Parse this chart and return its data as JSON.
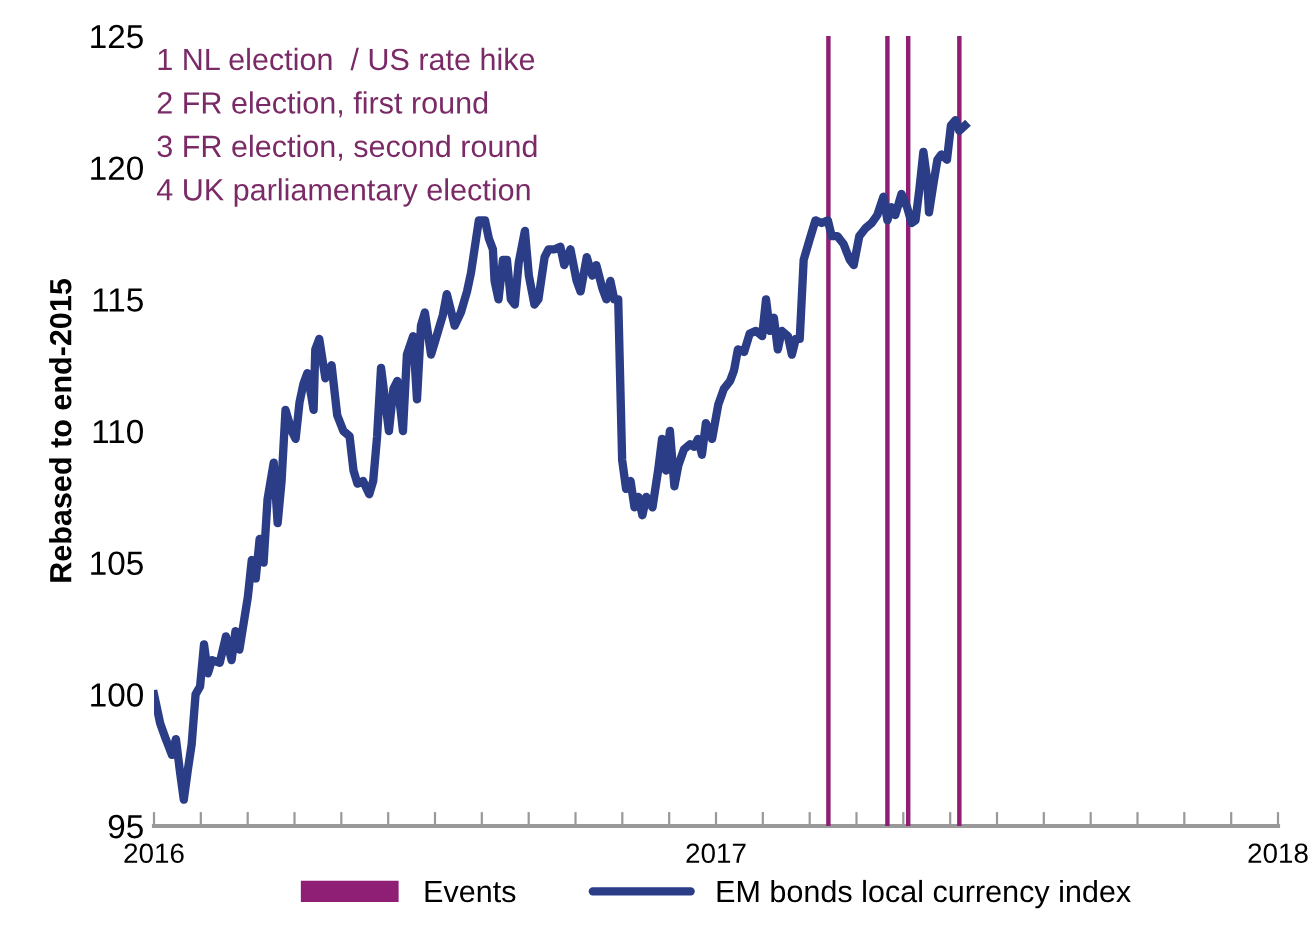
{
  "chart_data": {
    "type": "line",
    "ylabel": "Rebased to end-2015",
    "annotations": [
      "1 NL election  / US rate hike",
      "2 FR election, first round",
      "3 FR election, second round",
      "4 UK parliamentary election"
    ],
    "xlim": [
      2016,
      2018
    ],
    "ylim": [
      95,
      125
    ],
    "yticks": [
      95,
      100,
      105,
      110,
      115,
      120,
      125
    ],
    "xticks": [
      2016,
      {
        "value": 2016.0833,
        "label": null
      },
      {
        "value": 2016.1667,
        "label": null
      },
      {
        "value": 2016.25,
        "label": null
      },
      {
        "value": 2016.3333,
        "label": null
      },
      {
        "value": 2016.4167,
        "label": null
      },
      {
        "value": 2016.5,
        "label": null
      },
      {
        "value": 2016.5833,
        "label": null
      },
      {
        "value": 2016.6667,
        "label": null
      },
      {
        "value": 2016.75,
        "label": null
      },
      {
        "value": 2016.8333,
        "label": null
      },
      {
        "value": 2016.9167,
        "label": null
      },
      2017,
      {
        "value": 2017.0833,
        "label": null
      },
      {
        "value": 2017.1667,
        "label": null
      },
      {
        "value": 2017.25,
        "label": null
      },
      {
        "value": 2017.3333,
        "label": null
      },
      {
        "value": 2017.4167,
        "label": null
      },
      {
        "value": 2017.5,
        "label": null
      },
      {
        "value": 2017.5833,
        "label": null
      },
      {
        "value": 2017.6667,
        "label": null
      },
      {
        "value": 2017.75,
        "label": null
      },
      {
        "value": 2017.8333,
        "label": null
      },
      {
        "value": 2017.9167,
        "label": null
      },
      2018
    ],
    "grid": false,
    "legend": "bottom",
    "marker": "none",
    "line_style": "solid",
    "ref_lines": [
      {
        "axis": "x",
        "value": 2017.2,
        "label": "Events",
        "color": "#8e1f74"
      },
      {
        "axis": "x",
        "value": 2017.305,
        "color": "#8e1f74"
      },
      {
        "axis": "x",
        "value": 2017.342,
        "color": "#8e1f74"
      },
      {
        "axis": "x",
        "value": 2017.433,
        "color": "#8e1f74"
      }
    ],
    "series": [
      {
        "name": "EM bonds local currency index",
        "color": "#2b3d87",
        "x": [
          2016.0,
          2016.011,
          2016.021,
          2016.032,
          2016.039,
          2016.046,
          2016.053,
          2016.06,
          2016.067,
          2016.074,
          2016.082,
          2016.089,
          2016.096,
          2016.103,
          2016.117,
          2016.128,
          2016.138,
          2016.145,
          2016.152,
          2016.167,
          2016.174,
          2016.181,
          2016.188,
          2016.195,
          2016.202,
          2016.213,
          2016.22,
          2016.227,
          2016.234,
          2016.245,
          2016.252,
          2016.259,
          2016.266,
          2016.273,
          2016.284,
          2016.287,
          2016.294,
          2016.305,
          2016.316,
          2016.326,
          2016.337,
          2016.348,
          2016.355,
          2016.362,
          2016.372,
          2016.383,
          2016.39,
          2016.397,
          2016.404,
          2016.418,
          2016.426,
          2016.433,
          2016.443,
          2016.45,
          2016.461,
          2016.468,
          2016.475,
          2016.482,
          2016.493,
          2016.5,
          2016.507,
          2016.514,
          2016.521,
          2016.528,
          2016.535,
          2016.546,
          2016.557,
          2016.564,
          2016.571,
          2016.578,
          2016.589,
          2016.596,
          2016.603,
          2016.606,
          2016.613,
          2016.621,
          2016.628,
          2016.635,
          2016.642,
          2016.649,
          2016.66,
          2016.667,
          2016.677,
          2016.684,
          2016.695,
          2016.702,
          2016.713,
          2016.723,
          2016.73,
          2016.741,
          2016.752,
          2016.759,
          2016.77,
          2016.78,
          2016.787,
          2016.798,
          2016.805,
          2016.812,
          2016.819,
          2016.826,
          2016.833,
          2016.84,
          2016.848,
          2016.855,
          2016.862,
          2016.869,
          2016.876,
          2016.887,
          2016.897,
          2016.904,
          2016.911,
          2016.918,
          2016.926,
          2016.933,
          2016.943,
          2016.954,
          2016.961,
          2016.968,
          2016.975,
          2016.982,
          2016.993,
          2017.004,
          2017.014,
          2017.025,
          2017.032,
          2017.039,
          2017.05,
          2017.06,
          2017.071,
          2017.082,
          2017.089,
          2017.096,
          2017.103,
          2017.11,
          2017.117,
          2017.128,
          2017.135,
          2017.142,
          2017.149,
          2017.156,
          2017.167,
          2017.177,
          2017.188,
          2017.199,
          2017.206,
          2017.216,
          2017.227,
          2017.238,
          2017.245,
          2017.255,
          2017.266,
          2017.277,
          2017.287,
          2017.298,
          2017.305,
          2017.312,
          2017.319,
          2017.33,
          2017.34,
          2017.348,
          2017.355,
          2017.362,
          2017.369,
          2017.376,
          2017.379,
          2017.387,
          2017.394,
          2017.401,
          2017.411,
          2017.418,
          2017.426,
          2017.433,
          2017.443
        ],
        "values": [
          100.0,
          98.9,
          98.3,
          97.7,
          98.3,
          97.1,
          96.0,
          97.1,
          98.1,
          100.0,
          100.3,
          101.9,
          100.8,
          101.3,
          101.2,
          102.2,
          101.3,
          102.4,
          101.7,
          103.7,
          105.1,
          104.4,
          105.9,
          105.0,
          107.4,
          108.8,
          106.5,
          108.1,
          110.8,
          110.0,
          109.7,
          111.1,
          111.8,
          112.2,
          110.8,
          113.1,
          113.5,
          112.0,
          112.5,
          110.6,
          110.0,
          109.8,
          108.5,
          108.0,
          108.1,
          107.6,
          108.1,
          109.8,
          112.4,
          110.0,
          111.6,
          111.9,
          110.0,
          112.9,
          113.6,
          111.2,
          114.0,
          114.5,
          112.9,
          113.4,
          113.9,
          114.4,
          115.2,
          114.6,
          114.0,
          114.5,
          115.3,
          116.0,
          117.0,
          118.0,
          118.0,
          117.3,
          116.9,
          115.7,
          115.0,
          116.5,
          116.5,
          115.0,
          114.8,
          116.4,
          117.6,
          115.9,
          114.8,
          115.0,
          116.6,
          116.9,
          116.9,
          117.0,
          116.3,
          116.9,
          115.7,
          115.3,
          116.6,
          115.9,
          116.3,
          115.4,
          115.0,
          115.7,
          115.0,
          115.0,
          108.9,
          107.8,
          108.1,
          107.1,
          107.5,
          106.8,
          107.5,
          107.1,
          108.5,
          109.7,
          108.5,
          110.0,
          107.9,
          108.7,
          109.3,
          109.5,
          109.4,
          109.7,
          109.1,
          110.3,
          109.7,
          111.0,
          111.6,
          111.9,
          112.3,
          113.1,
          113.0,
          113.7,
          113.8,
          113.6,
          115.0,
          113.8,
          114.3,
          113.1,
          113.8,
          113.6,
          112.9,
          113.5,
          113.5,
          116.5,
          117.3,
          118.0,
          117.9,
          118.0,
          117.4,
          117.4,
          117.1,
          116.5,
          116.3,
          117.4,
          117.7,
          117.9,
          118.2,
          118.9,
          118.0,
          118.5,
          118.2,
          119.0,
          118.5,
          117.9,
          118.0,
          119.2,
          120.6,
          119.5,
          118.3,
          119.4,
          120.3,
          120.5,
          120.3,
          121.6,
          121.8,
          121.4,
          121.6
        ]
      }
    ]
  }
}
